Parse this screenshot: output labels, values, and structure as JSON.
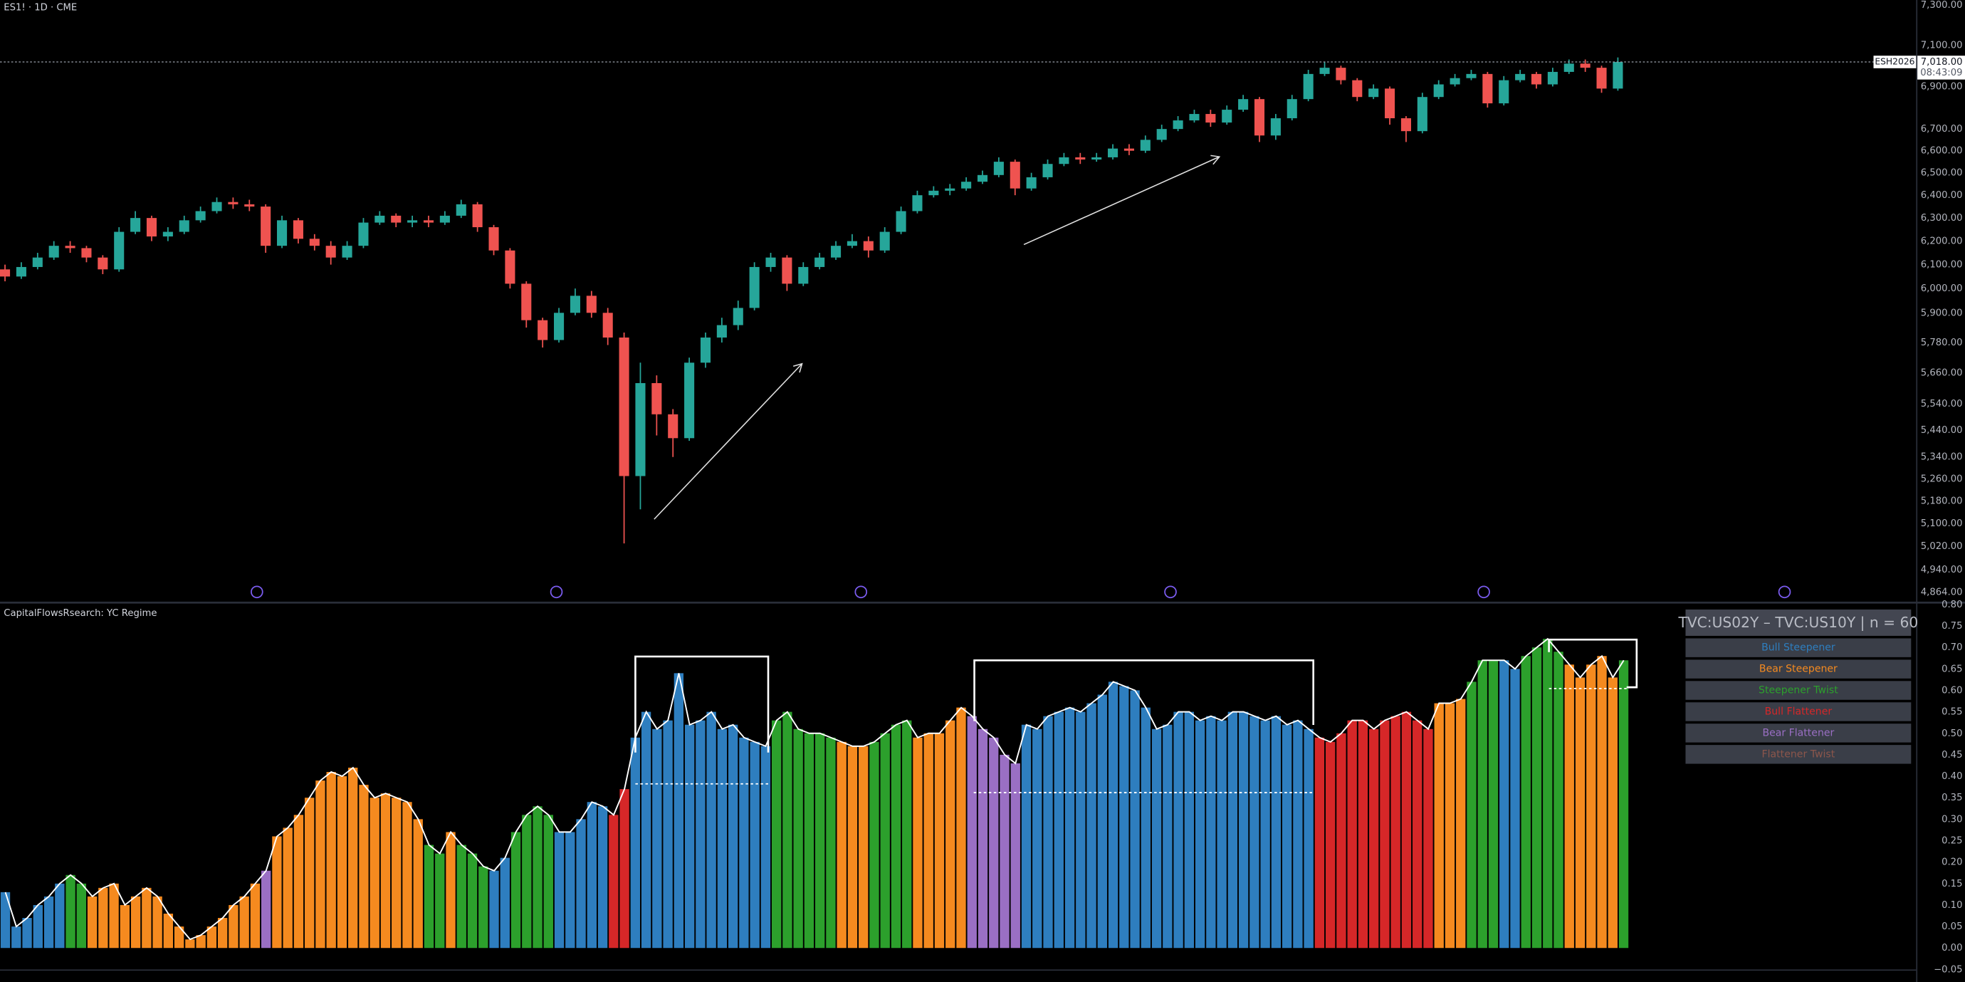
{
  "chart_data": [
    {
      "type": "candlestick",
      "title": "ES1! · 1D · CME",
      "scale": "log",
      "grid": false,
      "colors": {
        "up": "#26a69a",
        "down": "#ef5350"
      },
      "open": [
        6080,
        6050,
        6090,
        6130,
        6180,
        6170,
        6130,
        6080,
        6240,
        6300,
        6220,
        6240,
        6290,
        6330,
        6370,
        6360,
        6350,
        6180,
        6290,
        6210,
        6180,
        6130,
        6180,
        6280,
        6310,
        6280,
        6290,
        6280,
        6310,
        6360,
        6260,
        6160,
        6020,
        5870,
        5790,
        5900,
        5970,
        5900,
        5800,
        5270,
        5620,
        5500,
        5410,
        5700,
        5800,
        5850,
        5920,
        6090,
        6130,
        6020,
        6090,
        6130,
        6180,
        6200,
        6160,
        6240,
        6330,
        6400,
        6420,
        6430,
        6460,
        6490,
        6550,
        6430,
        6480,
        6540,
        6570,
        6560,
        6570,
        6610,
        6600,
        6650,
        6700,
        6740,
        6770,
        6730,
        6790,
        6840,
        6670,
        6750,
        6840,
        6960,
        6990,
        6930,
        6850,
        6890,
        6750,
        6690,
        6850,
        6910,
        6940,
        6960,
        6820,
        6930,
        6960,
        6910,
        6970,
        7010,
        6990,
        6890
      ],
      "high": [
        6100,
        6110,
        6150,
        6200,
        6200,
        6180,
        6140,
        6260,
        6330,
        6310,
        6260,
        6310,
        6350,
        6390,
        6390,
        6380,
        6360,
        6310,
        6300,
        6230,
        6200,
        6200,
        6300,
        6330,
        6320,
        6310,
        6310,
        6330,
        6380,
        6370,
        6270,
        6170,
        6030,
        5880,
        5920,
        6000,
        5990,
        5920,
        5820,
        5700,
        5650,
        5520,
        5720,
        5820,
        5880,
        5950,
        6110,
        6150,
        6140,
        6110,
        6150,
        6200,
        6230,
        6220,
        6260,
        6350,
        6420,
        6440,
        6450,
        6480,
        6510,
        6570,
        6560,
        6500,
        6560,
        6590,
        6590,
        6590,
        6630,
        6630,
        6670,
        6720,
        6760,
        6790,
        6790,
        6810,
        6860,
        6850,
        6770,
        6860,
        6980,
        7020,
        7000,
        6940,
        6910,
        6900,
        6760,
        6870,
        6930,
        6960,
        6980,
        6970,
        6950,
        6980,
        6970,
        6990,
        7030,
        7030,
        7000,
        7040
      ],
      "low": [
        6030,
        6040,
        6080,
        6120,
        6150,
        6110,
        6060,
        6070,
        6230,
        6200,
        6200,
        6230,
        6280,
        6320,
        6340,
        6330,
        6150,
        6170,
        6190,
        6160,
        6100,
        6120,
        6170,
        6270,
        6260,
        6260,
        6260,
        6270,
        6300,
        6240,
        6140,
        6000,
        5840,
        5760,
        5780,
        5890,
        5880,
        5770,
        5030,
        5150,
        5420,
        5340,
        5400,
        5680,
        5780,
        5830,
        5910,
        6070,
        5990,
        6010,
        6080,
        6120,
        6170,
        6130,
        6150,
        6230,
        6320,
        6390,
        6400,
        6420,
        6450,
        6480,
        6400,
        6420,
        6470,
        6530,
        6540,
        6550,
        6560,
        6580,
        6590,
        6640,
        6690,
        6730,
        6710,
        6720,
        6780,
        6640,
        6650,
        6740,
        6830,
        6950,
        6910,
        6830,
        6840,
        6720,
        6640,
        6680,
        6840,
        6900,
        6930,
        6800,
        6810,
        6920,
        6890,
        6900,
        6960,
        6970,
        6870,
        6880
      ],
      "close": [
        6050,
        6090,
        6130,
        6180,
        6170,
        6130,
        6080,
        6240,
        6300,
        6220,
        6240,
        6290,
        6330,
        6370,
        6360,
        6350,
        6180,
        6290,
        6210,
        6180,
        6130,
        6180,
        6280,
        6310,
        6280,
        6290,
        6280,
        6310,
        6360,
        6260,
        6160,
        6020,
        5870,
        5790,
        5900,
        5970,
        5900,
        5800,
        5270,
        5620,
        5500,
        5410,
        5700,
        5800,
        5850,
        5920,
        6090,
        6130,
        6020,
        6090,
        6130,
        6180,
        6200,
        6160,
        6240,
        6330,
        6400,
        6420,
        6430,
        6460,
        6490,
        6550,
        6430,
        6480,
        6540,
        6570,
        6560,
        6570,
        6610,
        6600,
        6650,
        6700,
        6740,
        6770,
        6730,
        6790,
        6840,
        6670,
        6750,
        6840,
        6960,
        6990,
        6930,
        6850,
        6890,
        6750,
        6690,
        6850,
        6910,
        6940,
        6960,
        6820,
        6930,
        6960,
        6910,
        6970,
        7010,
        6990,
        6890,
        7018
      ],
      "ylim": [
        4864,
        7300
      ],
      "yticks": [
        {
          "value": 7300,
          "label": "7,300.00"
        },
        {
          "value": 7100,
          "label": "7,100.00"
        },
        {
          "value": 6900,
          "label": "6,900.00"
        },
        {
          "value": 6700,
          "label": "6,700.00"
        },
        {
          "value": 6600,
          "label": "6,600.00"
        },
        {
          "value": 6500,
          "label": "6,500.00"
        },
        {
          "value": 6400,
          "label": "6,400.00"
        },
        {
          "value": 6300,
          "label": "6,300.00"
        },
        {
          "value": 6200,
          "label": "6,200.00"
        },
        {
          "value": 6100,
          "label": "6,100.00"
        },
        {
          "value": 6000,
          "label": "6,000.00"
        },
        {
          "value": 5900,
          "label": "5,900.00"
        },
        {
          "value": 5780,
          "label": "5,780.00"
        },
        {
          "value": 5660,
          "label": "5,660.00"
        },
        {
          "value": 5540,
          "label": "5,540.00"
        },
        {
          "value": 5440,
          "label": "5,440.00"
        },
        {
          "value": 5340,
          "label": "5,340.00"
        },
        {
          "value": 5260,
          "label": "5,260.00"
        },
        {
          "value": 5180,
          "label": "5,180.00"
        },
        {
          "value": 5100,
          "label": "5,100.00"
        },
        {
          "value": 5020,
          "label": "5,020.00"
        },
        {
          "value": 4940,
          "label": "4,940.00"
        },
        {
          "value": 4864,
          "label": "4,864.00"
        }
      ],
      "last_price": {
        "value": 7018,
        "label": "7,018.00"
      },
      "countdown": "08:43:09",
      "symbol_label": "ESH2026"
    },
    {
      "type": "bar",
      "title": "CapitalFlowsRsearch: YC Regime",
      "grid": false,
      "legend": {
        "title": "TVC:US02Y – TVC:US10Y | n = 60",
        "items": [
          {
            "name": "Bull Steepener",
            "color": "#2e7ebf"
          },
          {
            "name": "Bear Steepener",
            "color": "#f58a1f"
          },
          {
            "name": "Steepener Twist",
            "color": "#2ca02c"
          },
          {
            "name": "Bull Flattener",
            "color": "#d62728"
          },
          {
            "name": "Bear Flattener",
            "color": "#9a6fc4"
          },
          {
            "name": "Flattener Twist",
            "color": "#8c564b"
          }
        ]
      },
      "segments": [
        {
          "regime": "Bull Steepener",
          "values": [
            0.13,
            0.05,
            0.07,
            0.1,
            0.12,
            0.15
          ]
        },
        {
          "regime": "Steepener Twist",
          "values": [
            0.17,
            0.15
          ]
        },
        {
          "regime": "Bear Steepener",
          "values": [
            0.12,
            0.14,
            0.15,
            0.1,
            0.12,
            0.14,
            0.12,
            0.08,
            0.05,
            0.02,
            0.03,
            0.05,
            0.07,
            0.1,
            0.12,
            0.15
          ]
        },
        {
          "regime": "Bear Flattener",
          "values": [
            0.18
          ]
        },
        {
          "regime": "Bear Steepener",
          "values": [
            0.26,
            0.28,
            0.31,
            0.35,
            0.39,
            0.41,
            0.4,
            0.42,
            0.38,
            0.35,
            0.36,
            0.35,
            0.34,
            0.3
          ]
        },
        {
          "regime": "Steepener Twist",
          "values": [
            0.24,
            0.22
          ]
        },
        {
          "regime": "Bear Steepener",
          "values": [
            0.27
          ]
        },
        {
          "regime": "Steepener Twist",
          "values": [
            0.24,
            0.22,
            0.19
          ]
        },
        {
          "regime": "Bull Steepener",
          "values": [
            0.18,
            0.21
          ]
        },
        {
          "regime": "Steepener Twist",
          "values": [
            0.27,
            0.31,
            0.33,
            0.31
          ]
        },
        {
          "regime": "Bull Steepener",
          "values": [
            0.27,
            0.27,
            0.3,
            0.34,
            0.33
          ]
        },
        {
          "regime": "Bull Flattener",
          "values": [
            0.31,
            0.37
          ]
        },
        {
          "regime": "Bull Steepener",
          "values": [
            0.49,
            0.55,
            0.51,
            0.53,
            0.64,
            0.52,
            0.53,
            0.55,
            0.51,
            0.52,
            0.49,
            0.48,
            0.47
          ]
        },
        {
          "regime": "Steepener Twist",
          "values": [
            0.53,
            0.55,
            0.51,
            0.5,
            0.5,
            0.49
          ]
        },
        {
          "regime": "Bear Steepener",
          "values": [
            0.48,
            0.47,
            0.47
          ]
        },
        {
          "regime": "Steepener Twist",
          "values": [
            0.48,
            0.5,
            0.52,
            0.53
          ]
        },
        {
          "regime": "Bear Steepener",
          "values": [
            0.49,
            0.5,
            0.5,
            0.53,
            0.56
          ]
        },
        {
          "regime": "Bear Flattener",
          "values": [
            0.54,
            0.51,
            0.49,
            0.45,
            0.43
          ]
        },
        {
          "regime": "Bull Steepener",
          "values": [
            0.52,
            0.51,
            0.54,
            0.55,
            0.56,
            0.55,
            0.57,
            0.59,
            0.62,
            0.61,
            0.6,
            0.56,
            0.51,
            0.52,
            0.55,
            0.55,
            0.53,
            0.54,
            0.53,
            0.55,
            0.55,
            0.54,
            0.53,
            0.54,
            0.52,
            0.53,
            0.51
          ]
        },
        {
          "regime": "Bull Flattener",
          "values": [
            0.49,
            0.48,
            0.5,
            0.53,
            0.53,
            0.51,
            0.53,
            0.54,
            0.55,
            0.53,
            0.51
          ]
        },
        {
          "regime": "Bear Steepener",
          "values": [
            0.57,
            0.57,
            0.58
          ]
        },
        {
          "regime": "Steepener Twist",
          "values": [
            0.62,
            0.67,
            0.67
          ]
        },
        {
          "regime": "Bull Steepener",
          "values": [
            0.67,
            0.65
          ]
        },
        {
          "regime": "Steepener Twist",
          "values": [
            0.68,
            0.7,
            0.72,
            0.69
          ]
        },
        {
          "regime": "Bear Steepener",
          "values": [
            0.66,
            0.63,
            0.66,
            0.68,
            0.63
          ]
        },
        {
          "regime": "Steepener Twist",
          "values": [
            0.67
          ]
        }
      ],
      "ylim": [
        -0.05,
        0.8
      ],
      "yticks": [
        {
          "value": 0.8,
          "label": "0.80"
        },
        0.75,
        {
          "value": 0.7,
          "label": "0.70"
        },
        0.65,
        {
          "value": 0.6,
          "label": "0.60"
        },
        0.55,
        {
          "value": 0.5,
          "label": "0.50"
        },
        0.45,
        {
          "value": 0.4,
          "label": "0.40"
        },
        0.35,
        {
          "value": 0.3,
          "label": "0.30"
        },
        0.25,
        {
          "value": 0.2,
          "label": "0.20"
        },
        0.15,
        {
          "value": 0.1,
          "label": "0.10"
        },
        0.05,
        {
          "value": 0,
          "label": "0.00"
        },
        {
          "value": -0.05,
          "label": "−0.05"
        }
      ]
    }
  ]
}
